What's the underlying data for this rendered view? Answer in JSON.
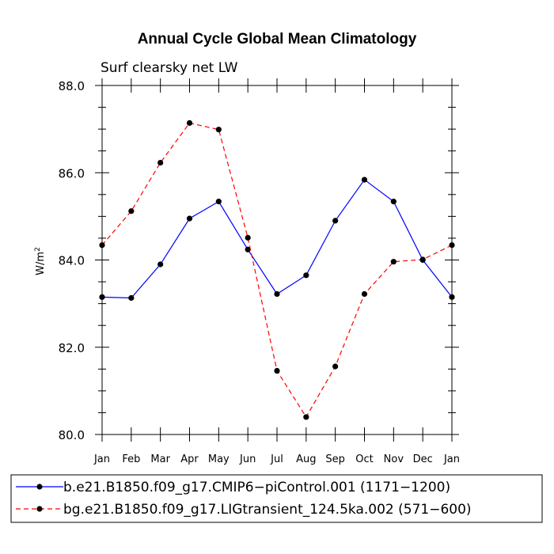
{
  "chart_data": {
    "type": "line",
    "title": "Annual Cycle Global Mean Climatology",
    "subtitle": "Surf clearsky net LW",
    "xlabel": "",
    "ylabel": "W/m",
    "ylabel_sup": "2",
    "categories": [
      "Jan",
      "Feb",
      "Mar",
      "Apr",
      "May",
      "Jun",
      "Jul",
      "Aug",
      "Sep",
      "Oct",
      "Nov",
      "Dec",
      "Jan"
    ],
    "ylim": [
      80.0,
      88.0
    ],
    "yticks": [
      80.0,
      82.0,
      84.0,
      86.0,
      88.0
    ],
    "ytick_labels": [
      "80.0",
      "82.0",
      "84.0",
      "86.0",
      "88.0"
    ],
    "grid": false,
    "legend_position": "bottom",
    "series": [
      {
        "name": "b.e21.B1850.f09_g17.CMIP6−piControl.001 (1171−1200)",
        "color": "#0000ff",
        "dash": "solid",
        "values": [
          83.15,
          83.13,
          83.9,
          84.95,
          85.34,
          84.24,
          83.22,
          83.65,
          84.9,
          85.84,
          85.34,
          84.0,
          83.15
        ]
      },
      {
        "name": "bg.e21.B1850.f09_g17.LIGtransient_124.5ka.002 (571−600)",
        "color": "#ff0000",
        "dash": "dashed",
        "values": [
          84.34,
          85.12,
          86.23,
          87.14,
          86.99,
          84.51,
          81.46,
          80.4,
          81.56,
          83.22,
          83.96,
          84.01,
          84.34
        ]
      }
    ]
  }
}
